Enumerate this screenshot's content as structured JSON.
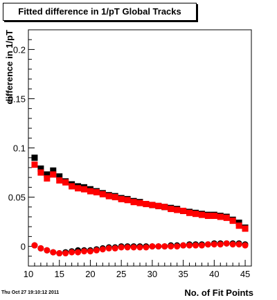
{
  "chart_data": {
    "type": "scatter",
    "title": "Fitted difference in 1/pT  Global Tracks",
    "xlabel": "No. of Fit Points",
    "ylabel": "difference in 1/pT",
    "xlim": [
      10,
      46
    ],
    "ylim": [
      -0.02,
      0.22
    ],
    "x_ticks": [
      10,
      15,
      20,
      25,
      30,
      35,
      40,
      45
    ],
    "y_ticks": [
      0,
      0.05,
      0.1,
      0.15,
      0.2
    ],
    "y_tick_labels": [
      "0",
      "0.05",
      "0.1",
      "0.15",
      "0.2"
    ],
    "x": [
      11,
      12,
      13,
      14,
      15,
      16,
      17,
      18,
      19,
      20,
      21,
      22,
      23,
      24,
      25,
      26,
      27,
      28,
      29,
      30,
      31,
      32,
      33,
      34,
      35,
      36,
      37,
      38,
      39,
      40,
      41,
      42,
      43,
      44,
      45
    ],
    "series": [
      {
        "marker": "square",
        "color": "#000000",
        "values": [
          0.09,
          0.079,
          0.073,
          0.077,
          0.071,
          0.066,
          0.063,
          0.061,
          0.06,
          0.058,
          0.056,
          0.054,
          0.052,
          0.051,
          0.049,
          0.048,
          0.046,
          0.045,
          0.043,
          0.042,
          0.041,
          0.04,
          0.039,
          0.038,
          0.036,
          0.035,
          0.034,
          0.033,
          0.032,
          0.032,
          0.031,
          0.03,
          0.027,
          0.024,
          0.019
        ]
      },
      {
        "marker": "square",
        "color": "#ff0000",
        "values": [
          0.083,
          0.075,
          0.069,
          0.073,
          0.067,
          0.065,
          0.061,
          0.059,
          0.058,
          0.056,
          0.055,
          0.053,
          0.051,
          0.05,
          0.048,
          0.047,
          0.045,
          0.044,
          0.043,
          0.042,
          0.041,
          0.04,
          0.038,
          0.037,
          0.036,
          0.034,
          0.033,
          0.032,
          0.031,
          0.031,
          0.03,
          0.029,
          0.026,
          0.021,
          0.018
        ]
      },
      {
        "marker": "circle",
        "color": "#000000",
        "values": [
          0.001,
          -0.002,
          -0.004,
          -0.006,
          -0.007,
          -0.006,
          -0.005,
          -0.004,
          -0.004,
          -0.004,
          -0.003,
          -0.002,
          -0.001,
          -0.001,
          0.0,
          0.0,
          0.0,
          0.0,
          0.0,
          0.0,
          0.0,
          0.0,
          0.001,
          0.001,
          0.001,
          0.002,
          0.002,
          0.002,
          0.002,
          0.003,
          0.003,
          0.003,
          0.003,
          0.003,
          0.002
        ]
      },
      {
        "marker": "circle",
        "color": "#ff0000",
        "values": [
          0.001,
          -0.002,
          -0.004,
          -0.006,
          -0.007,
          -0.007,
          -0.006,
          -0.006,
          -0.005,
          -0.005,
          -0.004,
          -0.003,
          -0.002,
          -0.002,
          -0.001,
          -0.001,
          -0.001,
          -0.001,
          -0.001,
          0.0,
          0.0,
          0.0,
          0.0,
          0.0,
          0.001,
          0.001,
          0.001,
          0.001,
          0.002,
          0.002,
          0.002,
          0.003,
          0.002,
          0.002,
          0.001
        ]
      }
    ]
  },
  "footer": {
    "timestamp": "Thu Oct 27 19:10:12 2011"
  }
}
